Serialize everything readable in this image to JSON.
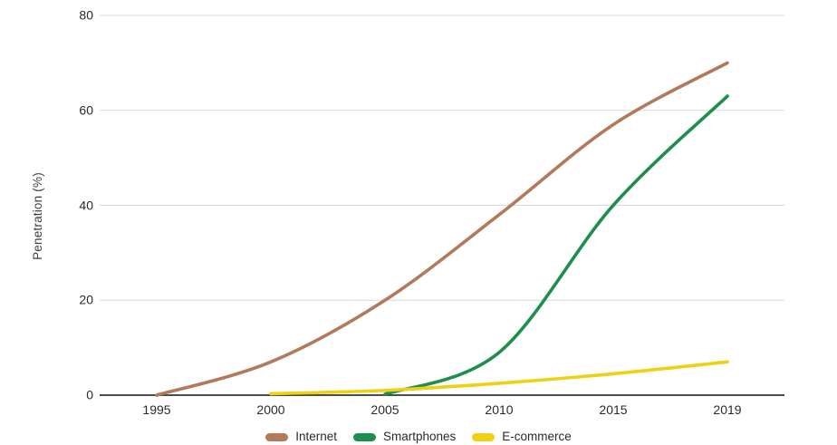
{
  "y_axis_label": "Penetration (%)",
  "colors": {
    "internet": "#b3795b",
    "smartphones": "#1e8e4f",
    "ecommerce": "#eed015",
    "grid": "#d8d8d8",
    "axis": "#333333",
    "tick_text": "#2a2a2a"
  },
  "chart_data": {
    "type": "line",
    "smooth": true,
    "title": "",
    "xlabel": "",
    "ylabel": "Penetration (%)",
    "categories": [
      "1995",
      "2000",
      "2005",
      "2010",
      "2015",
      "2019"
    ],
    "series": [
      {
        "name": "Internet",
        "color_key": "internet",
        "values": [
          0,
          7,
          20,
          38,
          57,
          70
        ]
      },
      {
        "name": "Smartphones",
        "color_key": "smartphones",
        "values": [
          null,
          null,
          0.2,
          9,
          40,
          63
        ]
      },
      {
        "name": "E-commerce",
        "color_key": "ecommerce",
        "values": [
          null,
          0.3,
          1,
          2.5,
          4.5,
          7
        ]
      }
    ],
    "ylim": [
      0,
      80
    ],
    "y_ticks": [
      0,
      20,
      40,
      60,
      80
    ],
    "grid": true,
    "legend_position": "bottom"
  }
}
